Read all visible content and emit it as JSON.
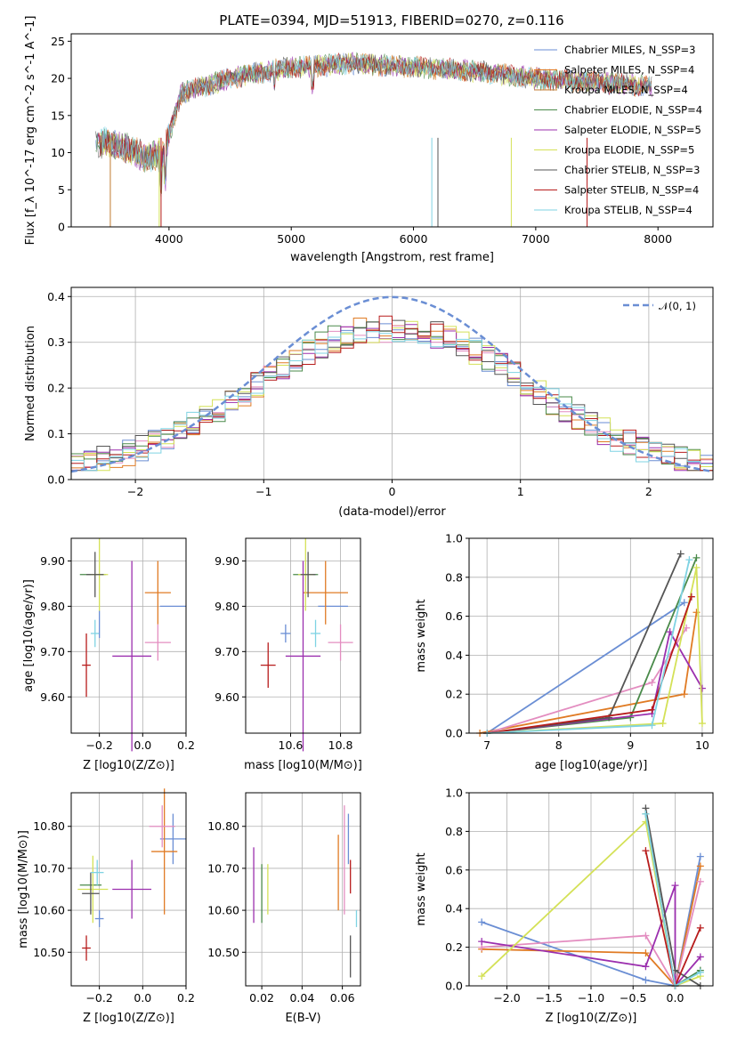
{
  "figure_title": "PLATE=0394, MJD=51913, FIBERID=0270, z=0.116",
  "colors": [
    "#6a8ed4",
    "#e07b24",
    "#c07a2e",
    "#4a8a4a",
    "#9b2fae",
    "#d4e157",
    "#555555",
    "#b71c1c",
    "#7fd3e3"
  ],
  "sub_colors": [
    "#6a8ed4",
    "#e07b24",
    "#e38dc0",
    "#4a8a4a",
    "#9b2fae",
    "#d4e157",
    "#555555",
    "#b71c1c",
    "#7fd3e3"
  ],
  "chart_data": [
    {
      "id": "spectrum",
      "type": "line",
      "title": "PLATE=0394, MJD=51913, FIBERID=0270, z=0.116",
      "xlabel": "wavelength [Angstrom, rest frame]",
      "ylabel": "Flux [f_λ 10^-17 erg cm^-2 s^-1 A^-1]",
      "xlim": [
        3200,
        8450
      ],
      "ylim": [
        0,
        26
      ],
      "xticks": [
        4000,
        5000,
        6000,
        7000,
        8000
      ],
      "yticks": [
        0,
        5,
        10,
        15,
        20,
        25
      ],
      "grid": false,
      "legend_position": "top-right",
      "approx_continuum": {
        "x": [
          3400,
          3600,
          3800,
          3950,
          4100,
          4500,
          5000,
          5500,
          6000,
          6500,
          7000,
          7500,
          7900
        ],
        "y": [
          11.5,
          11.0,
          9.5,
          9.5,
          18.0,
          20.0,
          21.5,
          22.0,
          21.5,
          21.0,
          20.0,
          19.5,
          19.0
        ]
      },
      "series": [
        {
          "name": "Chabrier MILES, N_SSP=3"
        },
        {
          "name": "Salpeter MILES, N_SSP=4"
        },
        {
          "name": "Kroupa MILES, N_SSP=4"
        },
        {
          "name": "Chabrier ELODIE, N_SSP=4"
        },
        {
          "name": "Salpeter ELODIE, N_SSP=5"
        },
        {
          "name": "Kroupa ELODIE, N_SSP=5"
        },
        {
          "name": "Chabrier STELIB, N_SSP=3"
        },
        {
          "name": "Salpeter STELIB, N_SSP=4"
        },
        {
          "name": "Kroupa STELIB, N_SSP=4"
        }
      ]
    },
    {
      "id": "residuals",
      "type": "line",
      "xlabel": "(data-model)/error",
      "ylabel": "Normed distribution",
      "xlim": [
        -2.5,
        2.5
      ],
      "ylim": [
        0,
        0.42
      ],
      "xticks": [
        -2,
        -1,
        0,
        1,
        2
      ],
      "yticks": [
        0.0,
        0.1,
        0.2,
        0.3,
        0.4
      ],
      "grid": true,
      "legend_position": "top-right",
      "legend_label": "𝒩(0, 1)",
      "bins": 50,
      "approx_histograms": "nine step histograms approximately following 0.4*exp(-x^2/2) with noise, values 0.03–0.40"
    },
    {
      "id": "age_vs_Z",
      "type": "scatter",
      "xlabel": "Z [log10(Z/Z⊙)]",
      "ylabel": "age [log10(age/yr)]",
      "xlim": [
        -0.33,
        0.2
      ],
      "ylim": [
        9.52,
        9.95
      ],
      "xticks": [
        -0.2,
        0.0,
        0.2
      ],
      "yticks": [
        9.6,
        9.7,
        9.8,
        9.9
      ],
      "grid": true,
      "errorbars": [
        {
          "x": 0.14,
          "xerr": 0.06,
          "y": 9.8,
          "yerr": 0.0
        },
        {
          "x": 0.07,
          "xerr": 0.06,
          "y": 9.83,
          "yerr": 0.07
        },
        {
          "x": 0.07,
          "xerr": 0.06,
          "y": 9.72,
          "yerr": 0.04
        },
        {
          "x": -0.23,
          "xerr": 0.06,
          "y": 9.87,
          "yerr": 0.0
        },
        {
          "x": -0.05,
          "xerr": 0.09,
          "y": 9.69,
          "yerr": 0.21
        },
        {
          "x": -0.2,
          "xerr": 0.04,
          "y": 9.87,
          "yerr": 0.08
        },
        {
          "x": -0.22,
          "xerr": 0.04,
          "y": 9.87,
          "yerr": 0.05
        },
        {
          "x": -0.26,
          "xerr": 0.02,
          "y": 9.67,
          "yerr": 0.07
        },
        {
          "x": -0.22,
          "xerr": 0.02,
          "y": 9.74,
          "yerr": 0.03
        },
        {
          "x": -0.2,
          "xerr": 0.0,
          "y": 9.76,
          "yerr": 0.03
        }
      ]
    },
    {
      "id": "age_vs_mass",
      "type": "scatter",
      "xlabel": "mass [log10(M/M⊙)]",
      "ylabel": "",
      "xlim": [
        10.42,
        10.88
      ],
      "ylim": [
        9.52,
        9.95
      ],
      "xticks": [
        10.6,
        10.8
      ],
      "yticks": [
        9.6,
        9.7,
        9.8,
        9.9
      ],
      "grid": true,
      "errorbars": [
        {
          "x": 10.77,
          "xerr": 0.06,
          "y": 9.8,
          "yerr": 0.0
        },
        {
          "x": 10.74,
          "xerr": 0.09,
          "y": 9.83,
          "yerr": 0.07
        },
        {
          "x": 10.8,
          "xerr": 0.05,
          "y": 9.72,
          "yerr": 0.04
        },
        {
          "x": 10.66,
          "xerr": 0.05,
          "y": 9.87,
          "yerr": 0.0
        },
        {
          "x": 10.65,
          "xerr": 0.07,
          "y": 9.69,
          "yerr": 0.21
        },
        {
          "x": 10.66,
          "xerr": 0.03,
          "y": 9.87,
          "yerr": 0.08
        },
        {
          "x": 10.67,
          "xerr": 0.03,
          "y": 9.87,
          "yerr": 0.05
        },
        {
          "x": 10.51,
          "xerr": 0.03,
          "y": 9.67,
          "yerr": 0.05
        },
        {
          "x": 10.7,
          "xerr": 0.02,
          "y": 9.74,
          "yerr": 0.03
        },
        {
          "x": 10.58,
          "xerr": 0.02,
          "y": 9.74,
          "yerr": 0.02
        }
      ]
    },
    {
      "id": "weight_vs_age",
      "type": "line",
      "xlabel": "age [log10(age/yr)]",
      "ylabel": "mass weight",
      "xlim": [
        6.75,
        10.15
      ],
      "ylim": [
        0,
        1
      ],
      "xticks": [
        7,
        8,
        9,
        10
      ],
      "yticks": [
        0.0,
        0.2,
        0.4,
        0.6,
        0.8,
        1.0
      ],
      "grid": true,
      "series": [
        {
          "x": [
            7.0,
            9.75
          ],
          "y": [
            0.0,
            0.67
          ]
        },
        {
          "x": [
            6.9,
            9.75,
            9.92
          ],
          "y": [
            0.0,
            0.2,
            0.62
          ]
        },
        {
          "x": [
            7.0,
            9.3,
            9.78
          ],
          "y": [
            0.0,
            0.26,
            0.54
          ]
        },
        {
          "x": [
            7.0,
            9.0,
            9.92
          ],
          "y": [
            0.0,
            0.08,
            0.9
          ]
        },
        {
          "x": [
            7.0,
            9.3,
            9.55,
            10.0
          ],
          "y": [
            0.0,
            0.1,
            0.52,
            0.23
          ]
        },
        {
          "x": [
            7.0,
            9.45,
            9.92,
            10.0
          ],
          "y": [
            0.0,
            0.05,
            0.85,
            0.05
          ]
        },
        {
          "x": [
            7.0,
            8.7,
            9.7
          ],
          "y": [
            0.0,
            0.08,
            0.92
          ]
        },
        {
          "x": [
            7.0,
            9.3,
            9.85
          ],
          "y": [
            0.0,
            0.12,
            0.7
          ]
        },
        {
          "x": [
            7.0,
            9.3,
            9.82
          ],
          "y": [
            0.0,
            0.04,
            0.89
          ]
        }
      ]
    },
    {
      "id": "mass_vs_Z",
      "type": "scatter",
      "xlabel": "Z [log10(Z/Z⊙)]",
      "ylabel": "mass [log10(M/M⊙)]",
      "xlim": [
        -0.33,
        0.2
      ],
      "ylim": [
        10.42,
        10.88
      ],
      "xticks": [
        -0.2,
        0.0,
        0.2
      ],
      "yticks": [
        10.5,
        10.6,
        10.7,
        10.8
      ],
      "grid": true,
      "errorbars": [
        {
          "x": 0.14,
          "xerr": 0.06,
          "y": 10.77,
          "yerr": 0.06
        },
        {
          "x": 0.1,
          "xerr": 0.06,
          "y": 10.74,
          "yerr": 0.15
        },
        {
          "x": 0.09,
          "xerr": 0.06,
          "y": 10.8,
          "yerr": 0.05
        },
        {
          "x": -0.24,
          "xerr": 0.05,
          "y": 10.66,
          "yerr": 0.0
        },
        {
          "x": -0.05,
          "xerr": 0.09,
          "y": 10.65,
          "yerr": 0.07
        },
        {
          "x": -0.23,
          "xerr": 0.07,
          "y": 10.65,
          "yerr": 0.08
        },
        {
          "x": -0.24,
          "xerr": 0.04,
          "y": 10.64,
          "yerr": 0.05
        },
        {
          "x": -0.26,
          "xerr": 0.02,
          "y": 10.51,
          "yerr": 0.03
        },
        {
          "x": -0.21,
          "xerr": 0.03,
          "y": 10.69,
          "yerr": 0.03
        },
        {
          "x": -0.2,
          "xerr": 0.02,
          "y": 10.58,
          "yerr": 0.02
        }
      ]
    },
    {
      "id": "mass_vs_ebv",
      "type": "scatter",
      "xlabel": "E(B-V)",
      "ylabel": "",
      "xlim": [
        0.012,
        0.069
      ],
      "ylim": [
        10.42,
        10.88
      ],
      "xticks": [
        0.02,
        0.04,
        0.06
      ],
      "yticks": [
        10.5,
        10.6,
        10.7,
        10.8
      ],
      "grid": true,
      "errorbars": [
        {
          "x": 0.063,
          "xerr": 0.0,
          "y": 10.77,
          "yerr": 0.06
        },
        {
          "x": 0.058,
          "xerr": 0.0,
          "y": 10.69,
          "yerr": 0.09
        },
        {
          "x": 0.061,
          "xerr": 0.0,
          "y": 10.72,
          "yerr": 0.13
        },
        {
          "x": 0.02,
          "xerr": 0.0,
          "y": 10.64,
          "yerr": 0.07
        },
        {
          "x": 0.016,
          "xerr": 0.0,
          "y": 10.66,
          "yerr": 0.09
        },
        {
          "x": 0.023,
          "xerr": 0.0,
          "y": 10.65,
          "yerr": 0.06
        },
        {
          "x": 0.064,
          "xerr": 0.0,
          "y": 10.49,
          "yerr": 0.05
        },
        {
          "x": 0.064,
          "xerr": 0.0,
          "y": 10.68,
          "yerr": 0.04
        },
        {
          "x": 0.067,
          "xerr": 0.0,
          "y": 10.58,
          "yerr": 0.02
        }
      ]
    },
    {
      "id": "weight_vs_Z",
      "type": "line",
      "xlabel": "Z [log10(Z/Z⊙)]",
      "ylabel": "mass weight",
      "xlim": [
        -2.45,
        0.45
      ],
      "ylim": [
        0,
        1
      ],
      "xticks": [
        -2.0,
        -1.5,
        -1.0,
        -0.5,
        0.0
      ],
      "yticks": [
        0.0,
        0.2,
        0.4,
        0.6,
        0.8,
        1.0
      ],
      "grid": true,
      "series": [
        {
          "x": [
            -2.3,
            -0.35,
            0.0,
            0.3
          ],
          "y": [
            0.33,
            0.03,
            0.0,
            0.67
          ]
        },
        {
          "x": [
            -2.3,
            -0.35,
            0.0,
            0.3
          ],
          "y": [
            0.19,
            0.17,
            0.0,
            0.62
          ]
        },
        {
          "x": [
            -2.3,
            -0.35,
            0.0,
            0.3
          ],
          "y": [
            0.2,
            0.26,
            0.0,
            0.54
          ]
        },
        {
          "x": [
            -0.35,
            0.0,
            0.3
          ],
          "y": [
            0.89,
            0.0,
            0.08
          ]
        },
        {
          "x": [
            -2.3,
            -0.35,
            0.0,
            0.0,
            0.3
          ],
          "y": [
            0.23,
            0.1,
            0.52,
            0.0,
            0.15
          ]
        },
        {
          "x": [
            -2.3,
            -0.35,
            0.0,
            0.3
          ],
          "y": [
            0.05,
            0.85,
            0.0,
            0.05
          ]
        },
        {
          "x": [
            -0.35,
            0.0,
            0.3
          ],
          "y": [
            0.92,
            0.08,
            0.0
          ]
        },
        {
          "x": [
            -0.35,
            0.0,
            0.3
          ],
          "y": [
            0.7,
            0.0,
            0.3
          ]
        },
        {
          "x": [
            -0.35,
            0.0,
            0.3
          ],
          "y": [
            0.89,
            0.0,
            0.07
          ]
        }
      ]
    }
  ]
}
